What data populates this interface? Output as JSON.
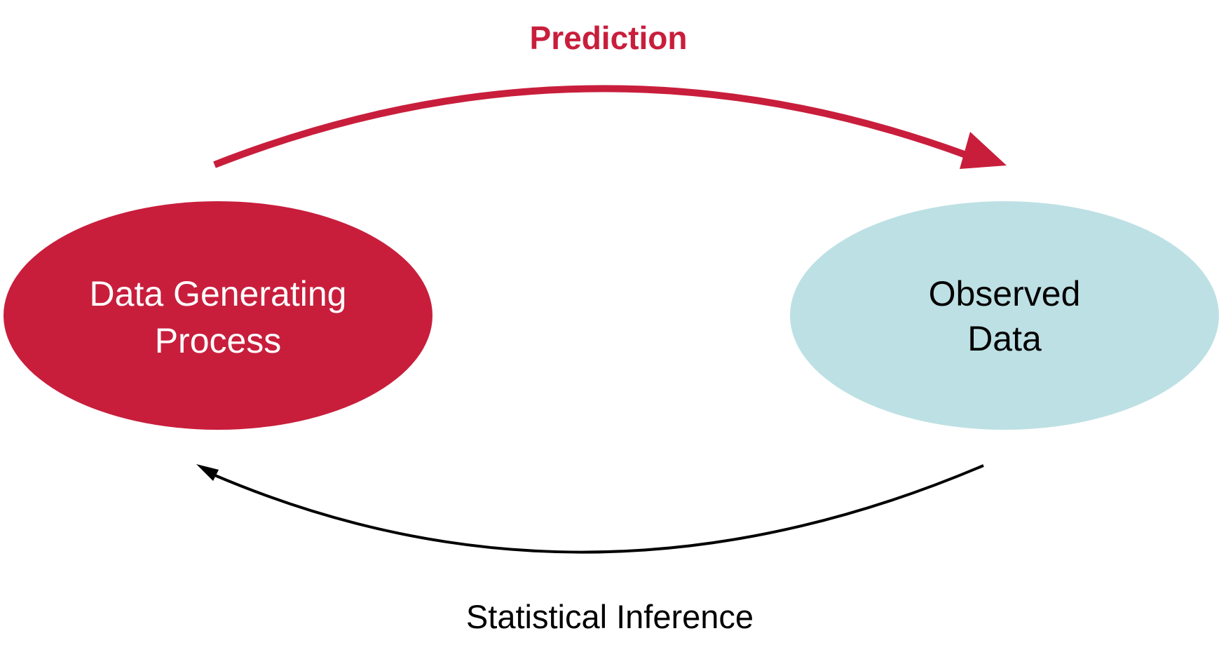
{
  "diagram": {
    "colors": {
      "red": "#c81e3c",
      "light_blue": "#bde0e4",
      "black": "#000000",
      "white": "#ffffff"
    },
    "nodes": {
      "dgp": {
        "line1": "Data Generating",
        "line2": "Process"
      },
      "observed": {
        "line1": "Observed",
        "line2": "Data"
      }
    },
    "edges": {
      "prediction": {
        "label": "Prediction"
      },
      "inference": {
        "label": "Statistical Inference"
      }
    }
  }
}
